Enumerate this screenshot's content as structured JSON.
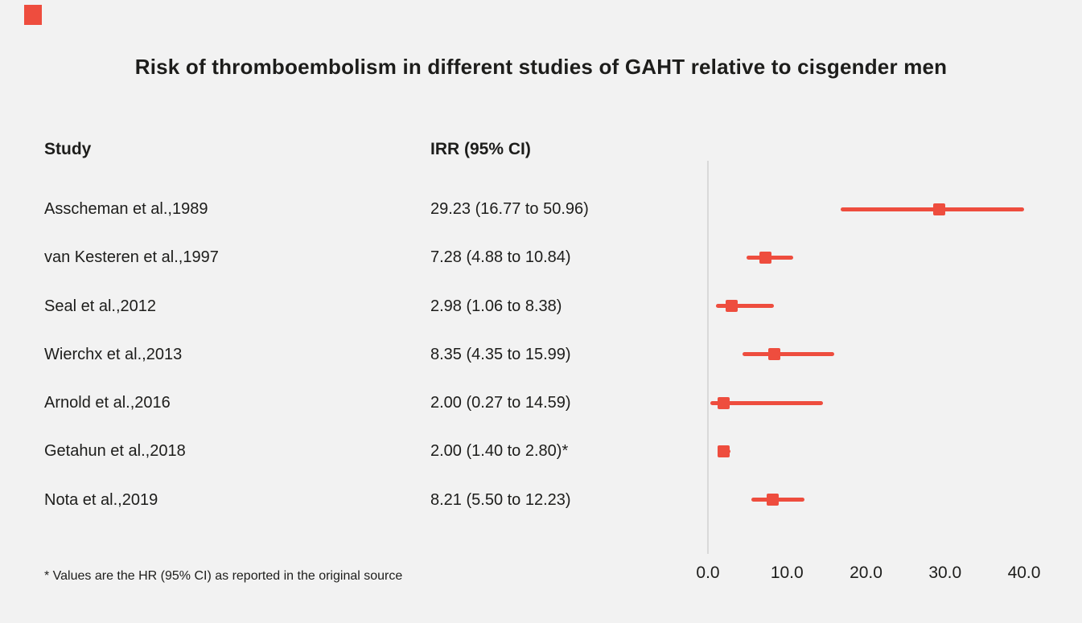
{
  "header": {
    "title": "Risk of thromboembolism in different studies of GAHT relative to cisgender men"
  },
  "columns": {
    "study": "Study",
    "irr": "IRR (95% CI)"
  },
  "footnote": "* Values are the HR (95% CI) as reported in the original source",
  "colors": {
    "accent": "#ee4d3e",
    "text": "#1d1d1b",
    "background": "#f2f2f2",
    "axis_line": "#d9d9d9"
  },
  "chart_data": {
    "type": "forest",
    "title": "Risk of thromboembolism in different studies of GAHT relative to cisgender men",
    "xlabel": "",
    "ylabel": "",
    "xlim": [
      0,
      40
    ],
    "xticks": [
      0,
      10,
      20,
      30,
      40
    ],
    "xtick_labels": [
      "0.0",
      "10.0",
      "20.0",
      "30.0",
      "40.0"
    ],
    "grid": "vertical-zero-line-only",
    "studies": [
      {
        "label": "Asscheman et al.,1989",
        "irr_text": "29.23 (16.77 to 50.96)",
        "value": 29.23,
        "ci_low": 16.77,
        "ci_high": 50.96
      },
      {
        "label": "van Kesteren et al.,1997",
        "irr_text": "7.28 (4.88 to 10.84)",
        "value": 7.28,
        "ci_low": 4.88,
        "ci_high": 10.84
      },
      {
        "label": "Seal et al.,2012",
        "irr_text": "2.98 (1.06 to 8.38)",
        "value": 2.98,
        "ci_low": 1.06,
        "ci_high": 8.38
      },
      {
        "label": "Wierchx et al.,2013",
        "irr_text": "8.35 (4.35 to 15.99)",
        "value": 8.35,
        "ci_low": 4.35,
        "ci_high": 15.99
      },
      {
        "label": "Arnold et al.,2016",
        "irr_text": "2.00 (0.27 to 14.59)",
        "value": 2.0,
        "ci_low": 0.27,
        "ci_high": 14.59
      },
      {
        "label": "Getahun et al.,2018",
        "irr_text": "2.00 (1.40 to 2.80)*",
        "value": 2.0,
        "ci_low": 1.4,
        "ci_high": 2.8
      },
      {
        "label": "Nota et al.,2019",
        "irr_text": "8.21 (5.50 to 12.23)",
        "value": 8.21,
        "ci_low": 5.5,
        "ci_high": 12.23
      }
    ]
  }
}
